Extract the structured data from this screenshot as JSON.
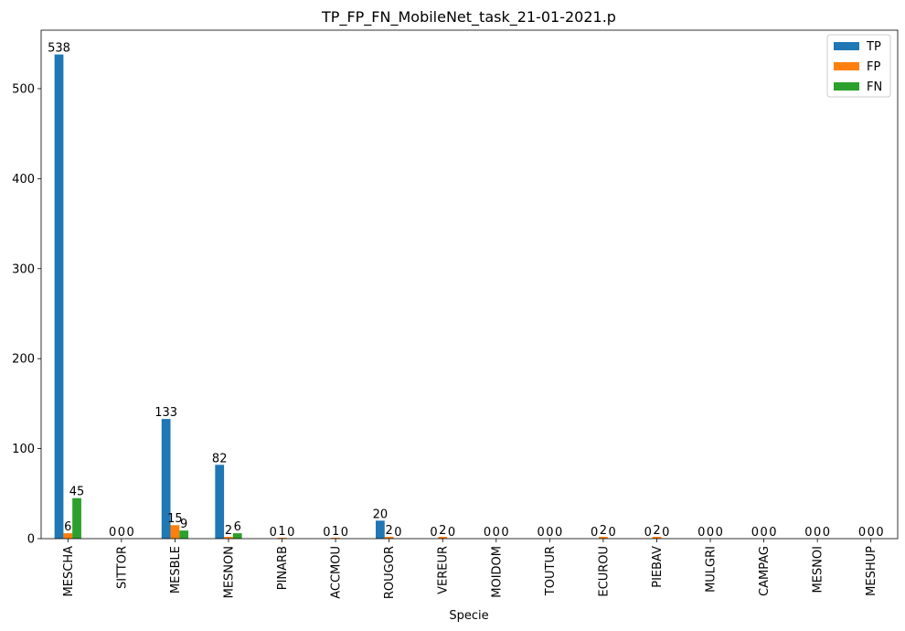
{
  "chart_data": {
    "type": "bar",
    "title": "TP_FP_FN_MobileNet_task_21-01-2021.p",
    "xlabel": "Specie",
    "ylabel": "",
    "ylim": [
      0,
      565
    ],
    "yticks": [
      0,
      100,
      200,
      300,
      400,
      500
    ],
    "legend_position": "top-right",
    "grid": false,
    "categories": [
      "MESCHA",
      "SITTOR",
      "MESBLE",
      "MESNON",
      "PINARB",
      "ACCMOU",
      "ROUGOR",
      "VEREUR",
      "MOIDOM",
      "TOUTUR",
      "ECUROU",
      "PIEBAV",
      "MULGRI",
      "CAMPAG",
      "MESNOI",
      "MESHUP"
    ],
    "series": [
      {
        "name": "TP",
        "color": "#1f77b4",
        "values": [
          538,
          0,
          133,
          82,
          0,
          0,
          20,
          0,
          0,
          0,
          0,
          0,
          0,
          0,
          0,
          0
        ]
      },
      {
        "name": "FP",
        "color": "#ff7f0e",
        "values": [
          6,
          0,
          15,
          2,
          1,
          1,
          2,
          2,
          0,
          0,
          2,
          2,
          0,
          0,
          0,
          0
        ]
      },
      {
        "name": "FN",
        "color": "#2ca02c",
        "values": [
          45,
          0,
          9,
          6,
          0,
          0,
          0,
          0,
          0,
          0,
          0,
          0,
          0,
          0,
          0,
          0
        ]
      }
    ]
  }
}
